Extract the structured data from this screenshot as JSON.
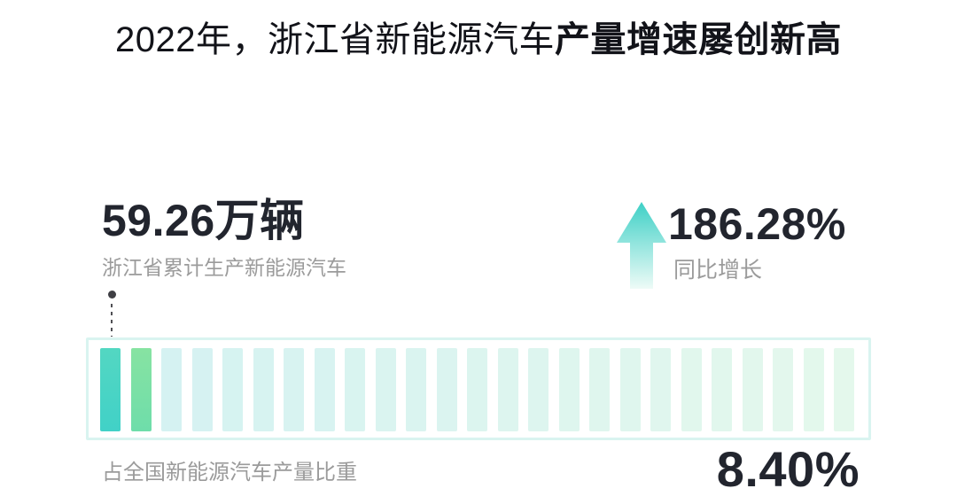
{
  "title": {
    "regular": "2022年，浙江省新能源汽车",
    "bold": "产量增速屡创新高"
  },
  "stats": {
    "production": {
      "value": "59.26",
      "unit": "万辆",
      "label": "浙江省累计生产新能源汽车"
    },
    "growth": {
      "value": "186.28%",
      "label": "同比增长",
      "icon": "arrow-up-icon"
    }
  },
  "share": {
    "label": "占全国新能源汽车产量比重",
    "value": "8.40%"
  },
  "chart_data": {
    "type": "bar",
    "subtype": "proportion-pictograph",
    "title": "占全国新能源汽车产量比重",
    "share_percent": 8.4,
    "total_bars": 25,
    "highlighted_bars": 2,
    "legend_position": "none",
    "grid": false,
    "callouts": [
      {
        "value": "59.26万辆",
        "label": "浙江省累计生产新能源汽车"
      },
      {
        "value": "186.28%",
        "label": "同比增长",
        "direction": "up"
      },
      {
        "value": "8.40%",
        "label": "占全国新能源汽车产量比重"
      }
    ],
    "colors": {
      "bar1_top": "#53d7c2",
      "bar1_bottom": "#41d1c7",
      "bar2_top": "#87e3a2",
      "bar2_bottom": "#6eddaa",
      "rest_start": "#d5f2f2",
      "rest_end": "#e4f8ec",
      "strip_border": "#d9f4f0",
      "arrow_top": "#3ed0c6",
      "arrow_bottom": "#eefbf7",
      "dark_text": "#22252e",
      "gray_text": "#9b9b9b"
    }
  }
}
